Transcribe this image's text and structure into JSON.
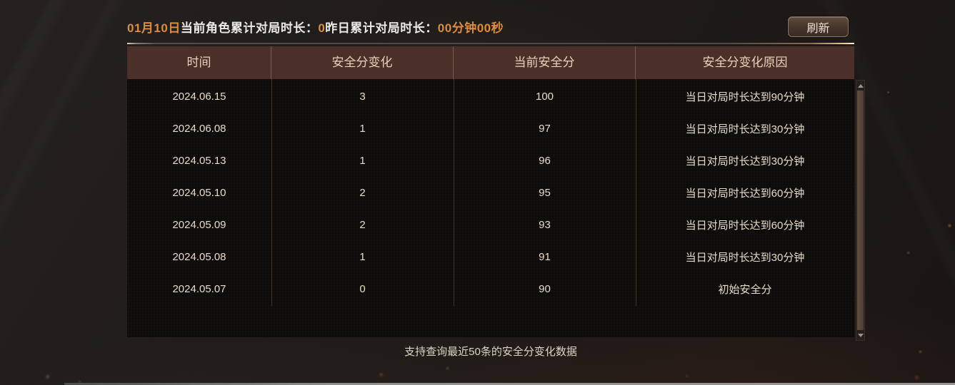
{
  "header": {
    "date_prefix": "01月10日",
    "today_label": "当前角色累计对局时长：",
    "today_value": "0",
    "yesterday_label": "昨日累计对局时长：",
    "yesterday_value": "00分钟00秒",
    "refresh_button": "刷新"
  },
  "table": {
    "columns": [
      "时间",
      "安全分变化",
      "当前安全分",
      "安全分变化原因"
    ],
    "rows": [
      [
        "2024.06.15",
        "3",
        "100",
        "当日对局时长达到90分钟"
      ],
      [
        "2024.06.08",
        "1",
        "97",
        "当日对局时长达到30分钟"
      ],
      [
        "2024.05.13",
        "1",
        "96",
        "当日对局时长达到30分钟"
      ],
      [
        "2024.05.10",
        "2",
        "95",
        "当日对局时长达到60分钟"
      ],
      [
        "2024.05.09",
        "2",
        "93",
        "当日对局时长达到60分钟"
      ],
      [
        "2024.05.08",
        "1",
        "91",
        "当日对局时长达到30分钟"
      ],
      [
        "2024.05.07",
        "0",
        "90",
        "初始安全分"
      ]
    ]
  },
  "footer": {
    "note": "支持查询最近50条的安全分变化数据"
  },
  "colors": {
    "accent_orange": "#dd8b3e",
    "table_header_bg": "#4a3029",
    "text_cream": "#e6dbc9"
  }
}
